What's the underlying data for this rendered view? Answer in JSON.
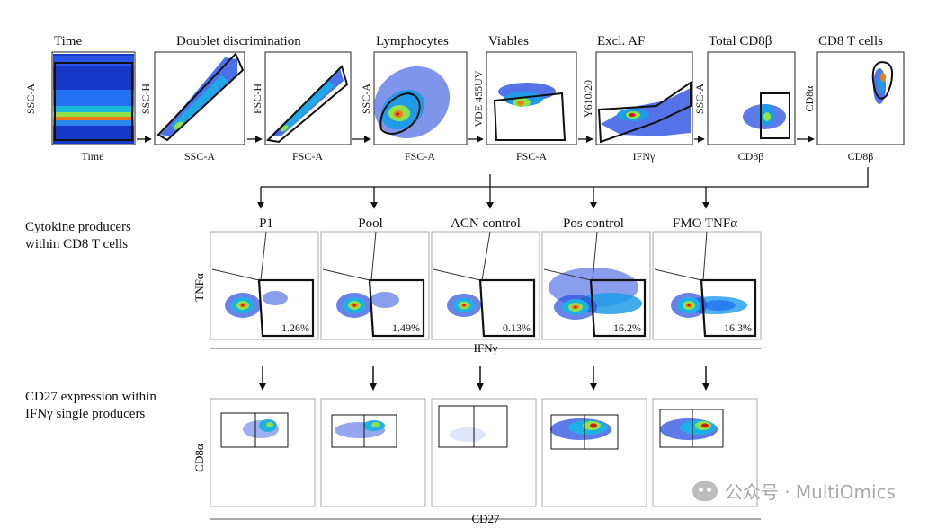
{
  "figure": {
    "gating_titles": [
      "Time",
      "Doublet discrimination",
      "Lymphocytes",
      "Viables",
      "Excl. AF",
      "Total CD8β",
      "CD8 T cells"
    ],
    "gating_panels": [
      {
        "y_label": "SSC-A",
        "x_label": "Time"
      },
      {
        "y_label": "SSC-H",
        "x_label": "SSC-A"
      },
      {
        "y_label": "FSC-H",
        "x_label": "FSC-A"
      },
      {
        "y_label": "SSC-A",
        "x_label": "FSC-A"
      },
      {
        "y_label": "VDE 455UV",
        "x_label": "FSC-A"
      },
      {
        "y_label": "Y610/20",
        "x_label": "IFNγ"
      },
      {
        "y_label": "SSC-A",
        "x_label": "CD8β"
      },
      {
        "y_label": "CD8α",
        "x_label": "CD8β"
      }
    ],
    "section_cytokine": "Cytokine producers\nwithin CD8 T cells",
    "section_cd27": "CD27 expression within\nIFNγ single producers",
    "sample_names": [
      "P1",
      "Pool",
      "ACN control",
      "Pos control",
      "FMO TNFα"
    ],
    "cytokine_y_label": "TNFα",
    "cytokine_x_label": "IFNγ",
    "cytokine_percentages": [
      "1.26%",
      "1.49%",
      "0.13%",
      "16.2%",
      "16.3%"
    ],
    "cd27_y_label": "CD8α",
    "cd27_x_label": "CD27"
  },
  "watermark": {
    "text": "公众号 · MultiOmics"
  }
}
